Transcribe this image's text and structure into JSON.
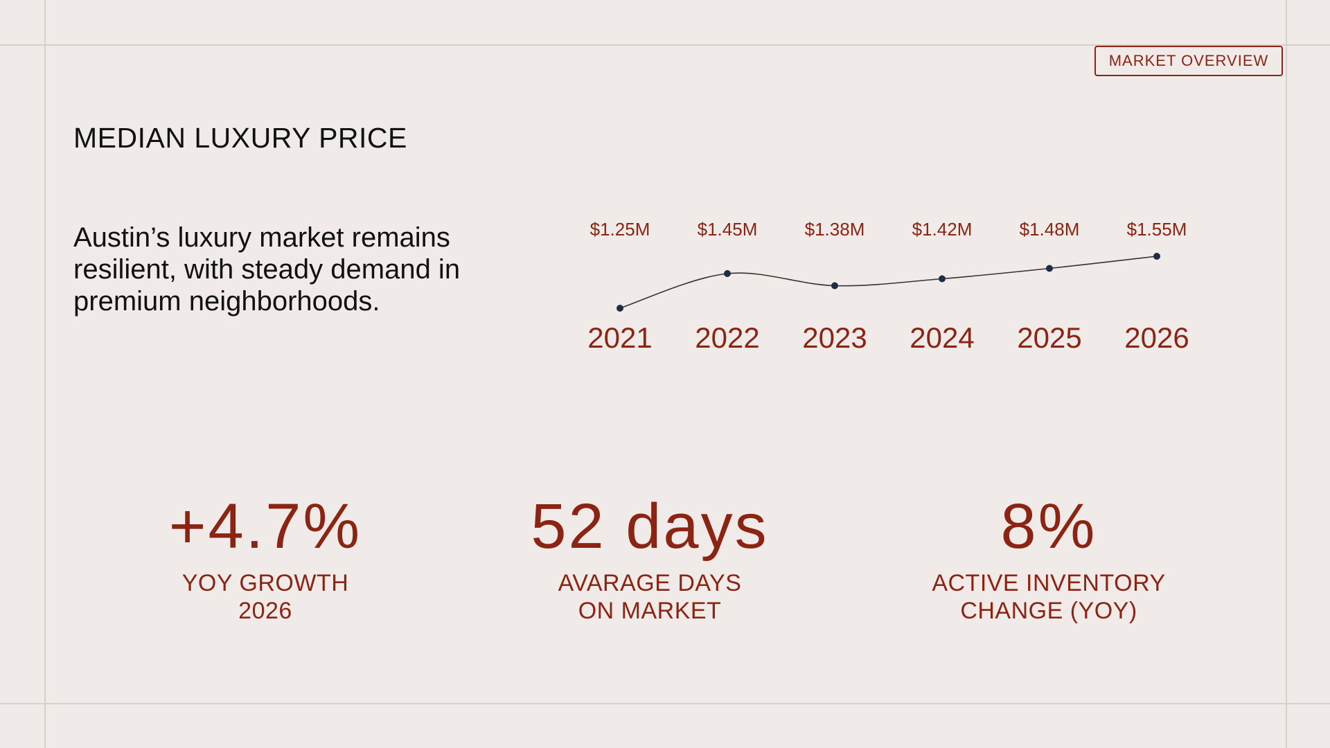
{
  "header": {
    "tag_label": "MARKET OVERVIEW"
  },
  "section": {
    "title": "MEDIAN LUXURY PRICE",
    "description": "Austin’s luxury market remains resilient, with steady demand in premium neighborhoods."
  },
  "chart_data": {
    "type": "line",
    "x": [
      "2021",
      "2022",
      "2023",
      "2024",
      "2025",
      "2026"
    ],
    "values": [
      1.25,
      1.45,
      1.38,
      1.42,
      1.48,
      1.55
    ],
    "data_labels": [
      "$1.25M",
      "$1.45M",
      "$1.38M",
      "$1.42M",
      "$1.48M",
      "$1.55M"
    ],
    "unit": "$M",
    "title": "",
    "xlabel": "",
    "ylabel": "",
    "grid": false,
    "line_color": "#333333",
    "marker_color": "#1f2d44",
    "label_color": "#8c2414"
  },
  "kpis": [
    {
      "value": "+4.7%",
      "label_line1": "YOY GROWTH",
      "label_line2": "2026"
    },
    {
      "value": "52 days",
      "label_line1": "AVARAGE DAYS",
      "label_line2": "ON MARKET"
    },
    {
      "value": "8%",
      "label_line1": "ACTIVE INVENTORY",
      "label_line2": "CHANGE (YOY)"
    }
  ],
  "colors": {
    "background": "#f0ebe8",
    "accent": "#8c2414",
    "text": "#111111",
    "guides": "#d6d0cd"
  }
}
